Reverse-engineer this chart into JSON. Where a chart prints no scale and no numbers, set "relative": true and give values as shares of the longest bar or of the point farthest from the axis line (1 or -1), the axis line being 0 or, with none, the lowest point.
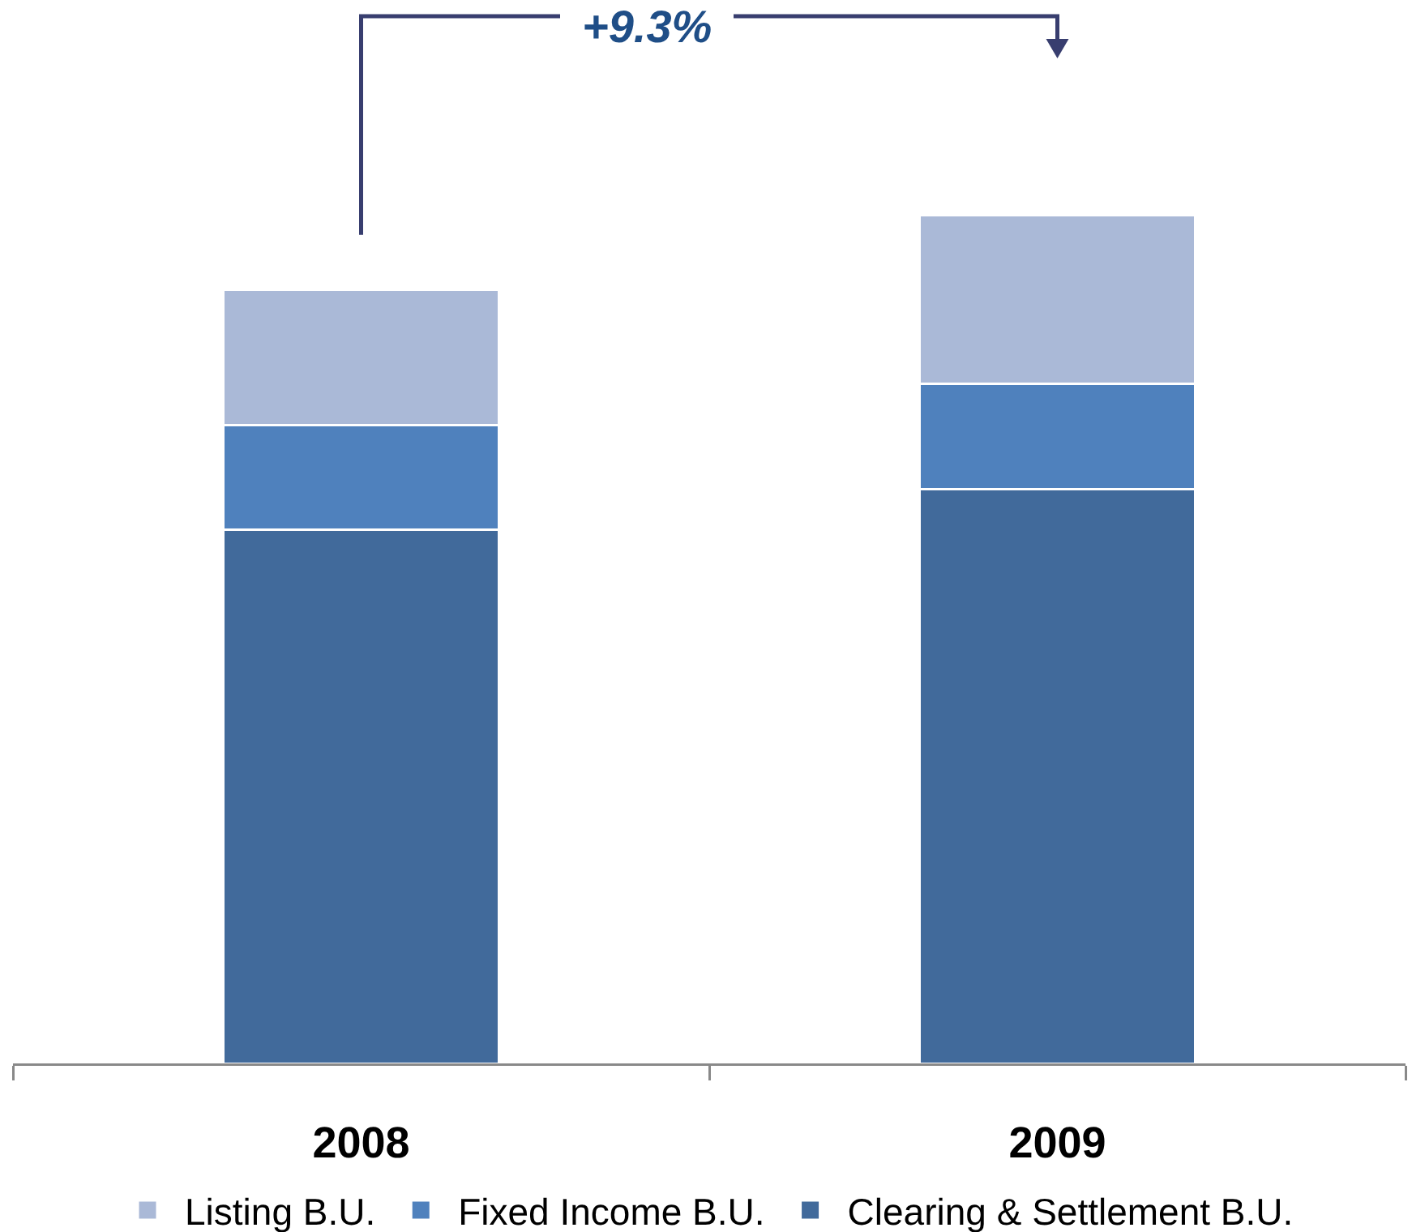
{
  "chart_data": {
    "type": "bar",
    "stacked": true,
    "relative": true,
    "legend": "bottom",
    "categories": [
      "2008",
      "2009"
    ],
    "series": [
      {
        "name": "Clearing & Settlement B.U.",
        "color": "#416a9b",
        "values": [
          0.629,
          0.677
        ]
      },
      {
        "name": "Fixed Income B.U.",
        "color": "#4f81bd",
        "values": [
          0.124,
          0.124
        ]
      },
      {
        "name": "Listing B.U.",
        "color": "#aab9d7",
        "values": [
          0.159,
          0.199
        ]
      }
    ],
    "annotations": [
      "+9.3%"
    ]
  }
}
